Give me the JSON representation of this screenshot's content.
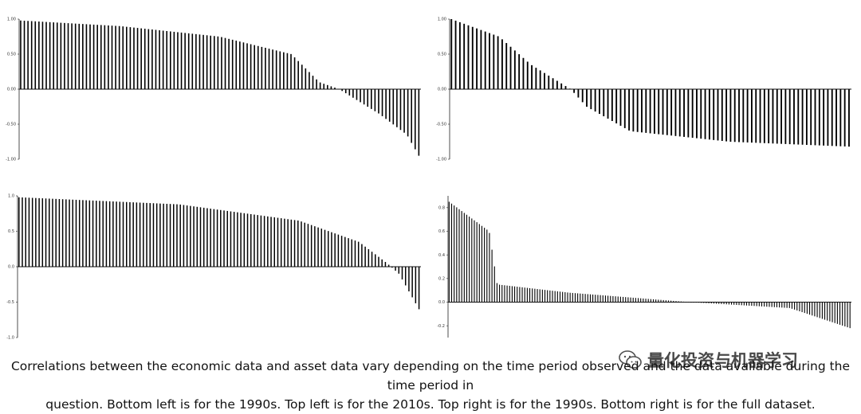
{
  "caption": {
    "line1": "Correlations between the economic data and asset data vary depending on the time period observed and the data available during the time period in",
    "line2": "question. Bottom left is for the 1990s. Top left is for the 2010s. Top right is for the 1990s. Bottom right is for the full dataset."
  },
  "watermark": {
    "text": "量化投资与机器学习",
    "icon": "wechat-icon"
  },
  "chart_data": [
    {
      "id": "top-left",
      "type": "bar",
      "period": "2010s",
      "n_bars": 110,
      "ylim": [
        -1.0,
        1.0
      ],
      "yticks": [
        1.0,
        0.5,
        0.0,
        -0.5,
        -1.0
      ],
      "ytick_labels": [
        "1.00",
        "0.50",
        "0.00",
        "-0.50",
        "-1.00"
      ],
      "profile": [
        [
          0,
          0.98
        ],
        [
          0.25,
          0.9
        ],
        [
          0.5,
          0.75
        ],
        [
          0.68,
          0.5
        ],
        [
          0.75,
          0.1
        ],
        [
          0.8,
          0.0
        ],
        [
          0.9,
          -0.35
        ],
        [
          0.97,
          -0.65
        ],
        [
          1.0,
          -0.95
        ]
      ],
      "grid": false,
      "legend": "none"
    },
    {
      "id": "top-right",
      "type": "bar",
      "period": "1990s",
      "n_bars": 95,
      "ylim": [
        -1.0,
        1.0
      ],
      "yticks": [
        1.0,
        0.5,
        0.0,
        -0.5,
        -1.0
      ],
      "ytick_labels": [
        "1.00",
        "0.50",
        "0.00",
        "-0.50",
        "-1.00"
      ],
      "profile": [
        [
          0,
          1.0
        ],
        [
          0.12,
          0.75
        ],
        [
          0.2,
          0.35
        ],
        [
          0.3,
          0.0
        ],
        [
          0.34,
          -0.25
        ],
        [
          0.45,
          -0.6
        ],
        [
          0.7,
          -0.75
        ],
        [
          1.0,
          -0.82
        ]
      ],
      "grid": false,
      "legend": "none"
    },
    {
      "id": "bottom-left",
      "type": "bar",
      "period": "1990s",
      "n_bars": 120,
      "ylim": [
        -1.0,
        1.0
      ],
      "yticks": [
        1.0,
        0.5,
        0.0,
        -0.5,
        -1.0
      ],
      "ytick_labels": [
        "1.0",
        "0.5",
        "0.0",
        "-0.5",
        "-1.0"
      ],
      "profile": [
        [
          0,
          0.98
        ],
        [
          0.4,
          0.88
        ],
        [
          0.7,
          0.65
        ],
        [
          0.85,
          0.35
        ],
        [
          0.92,
          0.05
        ],
        [
          0.95,
          -0.1
        ],
        [
          1.0,
          -0.6
        ]
      ],
      "grid": false,
      "legend": "none"
    },
    {
      "id": "bottom-right",
      "type": "bar",
      "period": "full dataset",
      "n_bars": 160,
      "ylim": [
        -0.3,
        0.9
      ],
      "yticks": [
        0.8,
        0.6,
        0.4,
        0.2,
        0.0,
        -0.2
      ],
      "ytick_labels": [
        "0.8",
        "0.6",
        "0.4",
        "0.2",
        "0.0",
        "-0.2"
      ],
      "profile": [
        [
          0,
          0.85
        ],
        [
          0.1,
          0.6
        ],
        [
          0.12,
          0.15
        ],
        [
          0.3,
          0.08
        ],
        [
          0.6,
          0.0
        ],
        [
          0.85,
          -0.05
        ],
        [
          1.0,
          -0.22
        ]
      ],
      "grid": false,
      "legend": "none"
    }
  ]
}
